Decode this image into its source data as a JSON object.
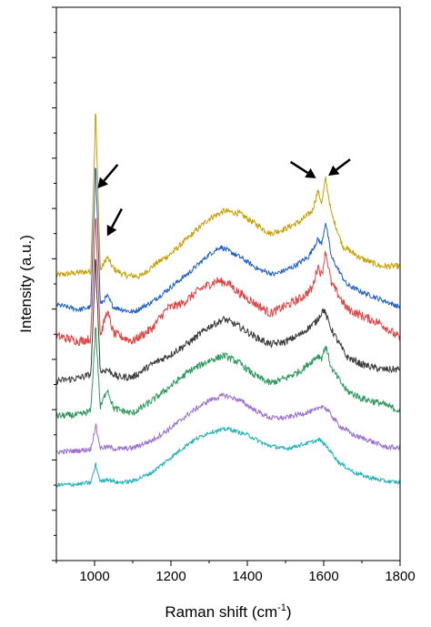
{
  "chart_data": {
    "type": "line",
    "title": "",
    "xlabel": "Raman shift (cm",
    "xlabel_sup": "-1",
    "xlabel_close": ")",
    "ylabel": "Intensity (a.u.)",
    "xlim": [
      900,
      1800
    ],
    "x_ticks": [
      "1000",
      "1200",
      "1400",
      "1600",
      "1800"
    ],
    "y_ticks_shown": false,
    "y_offset_step": 0.75,
    "grid": false,
    "legend": "none",
    "annotations": [
      {
        "kind": "arrow",
        "points_to_x": 1003,
        "on_series": 0
      },
      {
        "kind": "arrow",
        "points_to_x": 1033,
        "on_series": 0
      },
      {
        "kind": "arrow",
        "points_to_x": 1585,
        "on_series": 0
      },
      {
        "kind": "arrow",
        "points_to_x": 1605,
        "on_series": 0
      }
    ],
    "series": [
      {
        "color": "#c8a000",
        "offset": 7.4,
        "noise": 0.06,
        "points": [
          [
            900,
            0.12
          ],
          [
            960,
            0.18
          ],
          [
            990,
            0.2
          ],
          [
            1003,
            3.3
          ],
          [
            1015,
            0.22
          ],
          [
            1033,
            0.48
          ],
          [
            1050,
            0.25
          ],
          [
            1080,
            0.12
          ],
          [
            1120,
            0.1
          ],
          [
            1160,
            0.35
          ],
          [
            1200,
            0.55
          ],
          [
            1250,
            0.9
          ],
          [
            1300,
            1.25
          ],
          [
            1340,
            1.4
          ],
          [
            1380,
            1.35
          ],
          [
            1420,
            1.15
          ],
          [
            1460,
            0.95
          ],
          [
            1500,
            1.05
          ],
          [
            1540,
            1.2
          ],
          [
            1570,
            1.4
          ],
          [
            1585,
            1.8
          ],
          [
            1595,
            1.55
          ],
          [
            1605,
            2.05
          ],
          [
            1620,
            1.35
          ],
          [
            1650,
            0.7
          ],
          [
            1700,
            0.45
          ],
          [
            1750,
            0.3
          ],
          [
            1800,
            0.3
          ]
        ]
      },
      {
        "color": "#1f5fc8",
        "offset": 6.45,
        "noise": 0.05,
        "points": [
          [
            900,
            0.25
          ],
          [
            960,
            0.15
          ],
          [
            990,
            0.2
          ],
          [
            1003,
            3.0
          ],
          [
            1015,
            0.25
          ],
          [
            1033,
            0.42
          ],
          [
            1050,
            0.2
          ],
          [
            1100,
            0.1
          ],
          [
            1150,
            0.3
          ],
          [
            1200,
            0.6
          ],
          [
            1250,
            0.9
          ],
          [
            1300,
            1.25
          ],
          [
            1330,
            1.4
          ],
          [
            1380,
            1.2
          ],
          [
            1430,
            0.95
          ],
          [
            1470,
            0.85
          ],
          [
            1520,
            1.0
          ],
          [
            1560,
            1.2
          ],
          [
            1585,
            1.55
          ],
          [
            1595,
            1.45
          ],
          [
            1605,
            1.9
          ],
          [
            1620,
            1.2
          ],
          [
            1660,
            0.65
          ],
          [
            1700,
            0.5
          ],
          [
            1750,
            0.35
          ],
          [
            1800,
            0.2
          ]
        ]
      },
      {
        "color": "#e04545",
        "offset": 5.55,
        "noise": 0.09,
        "points": [
          [
            900,
            0.3
          ],
          [
            960,
            0.2
          ],
          [
            990,
            0.25
          ],
          [
            1003,
            2.7
          ],
          [
            1015,
            0.3
          ],
          [
            1033,
            0.8
          ],
          [
            1050,
            0.35
          ],
          [
            1100,
            0.2
          ],
          [
            1150,
            0.45
          ],
          [
            1190,
            0.85
          ],
          [
            1230,
            0.95
          ],
          [
            1280,
            1.25
          ],
          [
            1320,
            1.4
          ],
          [
            1350,
            1.35
          ],
          [
            1380,
            1.15
          ],
          [
            1420,
            0.95
          ],
          [
            1460,
            0.75
          ],
          [
            1500,
            0.9
          ],
          [
            1540,
            1.05
          ],
          [
            1570,
            1.25
          ],
          [
            1585,
            1.7
          ],
          [
            1595,
            1.5
          ],
          [
            1605,
            2.0
          ],
          [
            1620,
            1.35
          ],
          [
            1660,
            0.85
          ],
          [
            1700,
            0.7
          ],
          [
            1750,
            0.55
          ],
          [
            1800,
            0.25
          ]
        ]
      },
      {
        "color": "#3a3a3a",
        "offset": 4.6,
        "noise": 0.07,
        "points": [
          [
            900,
            0.12
          ],
          [
            960,
            0.18
          ],
          [
            990,
            0.25
          ],
          [
            1003,
            2.5
          ],
          [
            1015,
            0.3
          ],
          [
            1033,
            0.35
          ],
          [
            1060,
            0.2
          ],
          [
            1100,
            0.2
          ],
          [
            1150,
            0.45
          ],
          [
            1200,
            0.65
          ],
          [
            1250,
            0.9
          ],
          [
            1300,
            1.2
          ],
          [
            1340,
            1.35
          ],
          [
            1380,
            1.2
          ],
          [
            1420,
            1.0
          ],
          [
            1460,
            0.85
          ],
          [
            1500,
            0.9
          ],
          [
            1540,
            1.05
          ],
          [
            1580,
            1.3
          ],
          [
            1600,
            1.55
          ],
          [
            1620,
            1.15
          ],
          [
            1660,
            0.6
          ],
          [
            1700,
            0.45
          ],
          [
            1750,
            0.35
          ],
          [
            1800,
            0.35
          ]
        ]
      },
      {
        "color": "#2e9a5e",
        "offset": 3.7,
        "noise": 0.07,
        "points": [
          [
            900,
            0.1
          ],
          [
            960,
            0.12
          ],
          [
            990,
            0.2
          ],
          [
            1003,
            1.85
          ],
          [
            1015,
            0.25
          ],
          [
            1033,
            0.65
          ],
          [
            1050,
            0.25
          ],
          [
            1100,
            0.15
          ],
          [
            1150,
            0.4
          ],
          [
            1200,
            0.7
          ],
          [
            1250,
            1.0
          ],
          [
            1300,
            1.2
          ],
          [
            1340,
            1.3
          ],
          [
            1380,
            1.15
          ],
          [
            1420,
            0.9
          ],
          [
            1460,
            0.75
          ],
          [
            1500,
            0.85
          ],
          [
            1540,
            1.0
          ],
          [
            1585,
            1.3
          ],
          [
            1595,
            1.25
          ],
          [
            1605,
            1.5
          ],
          [
            1620,
            1.05
          ],
          [
            1660,
            0.6
          ],
          [
            1700,
            0.45
          ],
          [
            1750,
            0.35
          ],
          [
            1800,
            0.2
          ]
        ]
      },
      {
        "color": "#9b6fd0",
        "offset": 2.85,
        "noise": 0.05,
        "points": [
          [
            900,
            0.02
          ],
          [
            960,
            0.05
          ],
          [
            990,
            0.08
          ],
          [
            1003,
            0.55
          ],
          [
            1015,
            0.1
          ],
          [
            1033,
            0.12
          ],
          [
            1060,
            0.08
          ],
          [
            1100,
            0.1
          ],
          [
            1150,
            0.25
          ],
          [
            1200,
            0.5
          ],
          [
            1250,
            0.8
          ],
          [
            1300,
            1.05
          ],
          [
            1340,
            1.15
          ],
          [
            1380,
            1.05
          ],
          [
            1420,
            0.85
          ],
          [
            1460,
            0.7
          ],
          [
            1500,
            0.7
          ],
          [
            1540,
            0.78
          ],
          [
            1580,
            0.85
          ],
          [
            1595,
            0.95
          ],
          [
            1610,
            0.85
          ],
          [
            1640,
            0.55
          ],
          [
            1680,
            0.35
          ],
          [
            1720,
            0.25
          ],
          [
            1760,
            0.12
          ],
          [
            1800,
            0.1
          ]
        ]
      },
      {
        "color": "#20b2b8",
        "offset": 2.0,
        "noise": 0.04,
        "points": [
          [
            900,
            0.0
          ],
          [
            960,
            0.02
          ],
          [
            990,
            0.05
          ],
          [
            1003,
            0.4
          ],
          [
            1015,
            0.07
          ],
          [
            1033,
            0.12
          ],
          [
            1060,
            0.05
          ],
          [
            1100,
            0.08
          ],
          [
            1150,
            0.25
          ],
          [
            1200,
            0.55
          ],
          [
            1250,
            0.85
          ],
          [
            1300,
            1.05
          ],
          [
            1350,
            1.12
          ],
          [
            1400,
            1.0
          ],
          [
            1450,
            0.8
          ],
          [
            1500,
            0.72
          ],
          [
            1550,
            0.82
          ],
          [
            1590,
            0.9
          ],
          [
            1610,
            0.75
          ],
          [
            1640,
            0.45
          ],
          [
            1680,
            0.25
          ],
          [
            1720,
            0.15
          ],
          [
            1760,
            0.08
          ],
          [
            1800,
            0.05
          ]
        ]
      }
    ]
  }
}
